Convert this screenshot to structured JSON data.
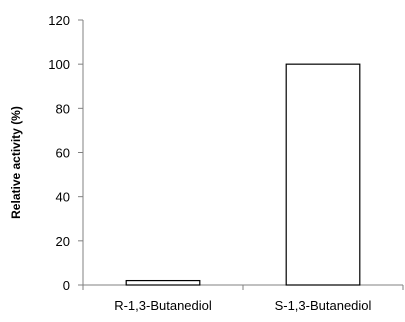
{
  "chart_data": {
    "type": "bar",
    "title": "",
    "xlabel": "",
    "ylabel": "Relative activity (%)",
    "categories": [
      "R-1,3-Butanediol",
      "S-1,3-Butanediol"
    ],
    "values": [
      2,
      100
    ],
    "ylim": [
      0,
      120
    ],
    "yticks": [
      0,
      20,
      40,
      60,
      80,
      100,
      120
    ],
    "grid": false,
    "legend": "none",
    "bar_fill": "#ffffff",
    "bar_stroke": "#000000",
    "axis_color": "#808080"
  }
}
